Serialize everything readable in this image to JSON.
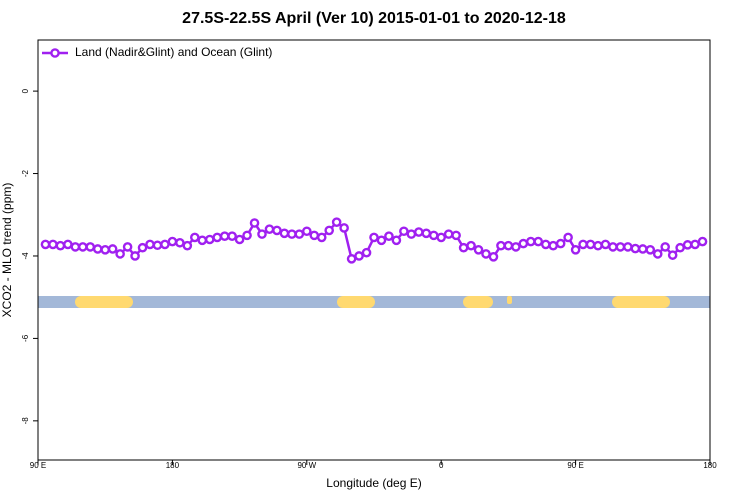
{
  "chart_data": {
    "type": "line",
    "title": "27.5S-22.5S April (Ver 10)   2015-01-01 to 2020-12-18",
    "xlabel": "Longitude (deg E)",
    "ylabel": "XCO2 - MLO trend (ppm)",
    "x": [
      95,
      100,
      105,
      110,
      115,
      120,
      125,
      130,
      135,
      140,
      145,
      150,
      155,
      160,
      165,
      170,
      175,
      180,
      185,
      190,
      195,
      200,
      205,
      210,
      215,
      220,
      225,
      230,
      235,
      240,
      245,
      250,
      255,
      260,
      265,
      270,
      275,
      280,
      285,
      290,
      295,
      300,
      305,
      310,
      315,
      320,
      325,
      330,
      335,
      340,
      345,
      350,
      355,
      360,
      365,
      370,
      375,
      380,
      385,
      390,
      395,
      400,
      405,
      410,
      415,
      420,
      425,
      430,
      435,
      440,
      445,
      450,
      455,
      460,
      465,
      470,
      475,
      480,
      485,
      490,
      495,
      500,
      505,
      510,
      515,
      520,
      525,
      530,
      535
    ],
    "series": [
      {
        "name": "Land (Nadir&Glint) and Ocean (Glint)",
        "color": "#a020f0",
        "values": [
          -3.72,
          -3.72,
          -3.75,
          -3.72,
          -3.78,
          -3.78,
          -3.78,
          -3.83,
          -3.85,
          -3.83,
          -3.95,
          -3.78,
          -4.0,
          -3.8,
          -3.72,
          -3.74,
          -3.72,
          -3.65,
          -3.68,
          -3.75,
          -3.55,
          -3.62,
          -3.6,
          -3.55,
          -3.52,
          -3.52,
          -3.6,
          -3.5,
          -3.2,
          -3.47,
          -3.35,
          -3.38,
          -3.45,
          -3.47,
          -3.47,
          -3.4,
          -3.5,
          -3.55,
          -3.38,
          -3.18,
          -3.32,
          -4.07,
          -4.0,
          -3.92,
          -3.55,
          -3.62,
          -3.52,
          -3.62,
          -3.4,
          -3.47,
          -3.42,
          -3.45,
          -3.5,
          -3.55,
          -3.47,
          -3.5,
          -3.8,
          -3.75,
          -3.85,
          -3.95,
          -4.02,
          -3.75,
          -3.75,
          -3.78,
          -3.7,
          -3.65,
          -3.65,
          -3.72,
          -3.75,
          -3.7,
          -3.55,
          -3.85,
          -3.72,
          -3.72,
          -3.75,
          -3.72,
          -3.78,
          -3.78,
          -3.78,
          -3.82,
          -3.83,
          -3.85,
          -3.95,
          -3.78,
          -3.98,
          -3.8,
          -3.73,
          -3.72,
          -3.65
        ]
      }
    ],
    "xlim": [
      90,
      540
    ],
    "xticks": [
      {
        "value": 90,
        "label": "90 E"
      },
      180,
      {
        "value": 270,
        "label": "90 W"
      },
      {
        "value": 360,
        "label": "0"
      },
      {
        "value": 450,
        "label": "90 E"
      },
      {
        "value": 540,
        "label": "180"
      }
    ],
    "ylim": [
      -8.95,
      1.24
    ],
    "yticks": [
      0,
      -2,
      -4,
      -6,
      -8
    ],
    "legend": "upper left"
  }
}
